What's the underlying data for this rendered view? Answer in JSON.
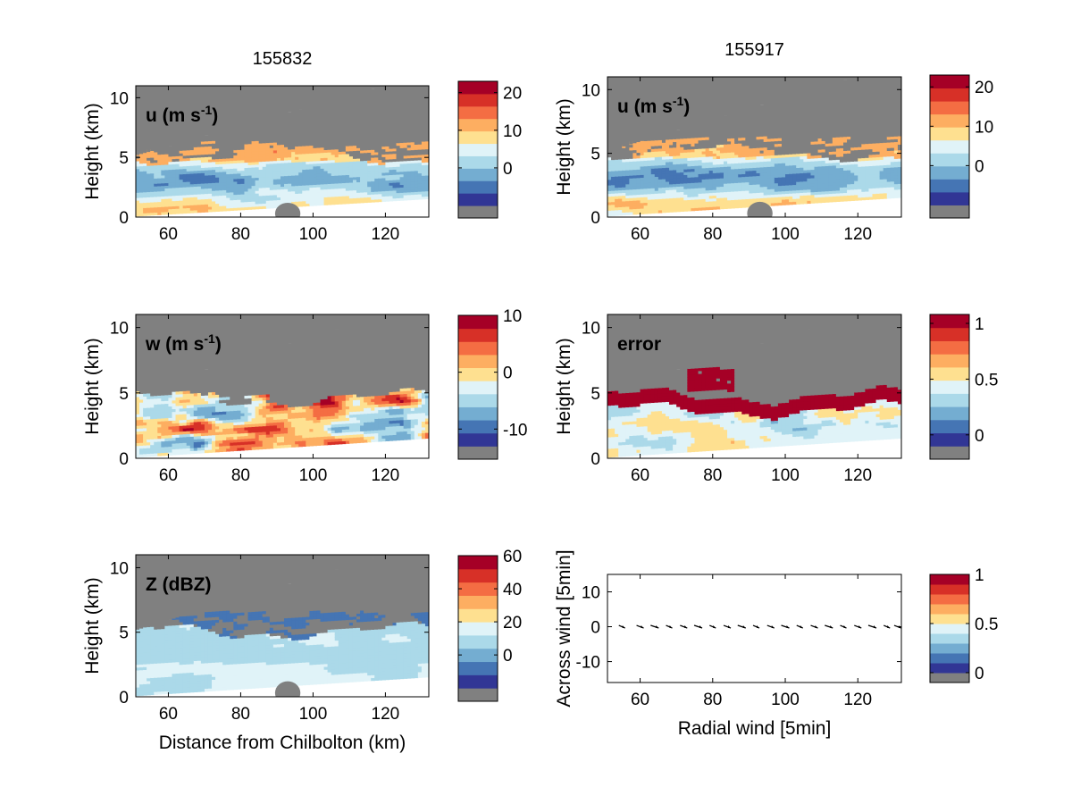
{
  "chart_data": [
    {
      "type": "heatmap",
      "id": "u1",
      "title": "155832",
      "panel_label": "u (m s",
      "panel_label_sup": "-1",
      "panel_label_end": ")",
      "xlabel": "",
      "ylabel": "Height (km)",
      "xlim": [
        51,
        132
      ],
      "ylim": [
        0,
        11
      ],
      "xticks": [
        60,
        80,
        100,
        120
      ],
      "yticks": [
        0,
        5,
        10
      ],
      "colorbar": {
        "min": -10,
        "max": 23,
        "ticks": [
          20,
          10,
          0
        ],
        "ticklabels": [
          "20",
          "10",
          "0"
        ]
      },
      "field": "u"
    },
    {
      "type": "heatmap",
      "id": "u2",
      "title": "155917",
      "panel_label": "u (m s",
      "panel_label_sup": "-1",
      "panel_label_end": ")",
      "xlabel": "",
      "ylabel": "Height (km)",
      "xlim": [
        51,
        132
      ],
      "ylim": [
        0,
        11
      ],
      "xticks": [
        60,
        80,
        100,
        120
      ],
      "yticks": [
        0,
        5,
        10
      ],
      "colorbar": {
        "min": -10,
        "max": 23,
        "ticks": [
          20,
          10,
          0
        ],
        "ticklabels": [
          "20",
          "10",
          "0"
        ]
      },
      "field": "u"
    },
    {
      "type": "heatmap",
      "id": "w",
      "title": "",
      "panel_label": "w (m s",
      "panel_label_sup": "-1",
      "panel_label_end": ")",
      "xlabel": "",
      "ylabel": "Height (km)",
      "xlim": [
        51,
        132
      ],
      "ylim": [
        0,
        11
      ],
      "xticks": [
        60,
        80,
        100,
        120
      ],
      "yticks": [
        0,
        5,
        10
      ],
      "colorbar": {
        "min": -13,
        "max": 10,
        "ticks": [
          10,
          0,
          -10
        ],
        "ticklabels": [
          "10",
          "0",
          "-10"
        ]
      },
      "field": "w"
    },
    {
      "type": "heatmap",
      "id": "err",
      "title": "",
      "panel_label": "error",
      "panel_label_sup": "",
      "panel_label_end": "",
      "xlabel": "",
      "ylabel": "Height (km)",
      "xlim": [
        51,
        132
      ],
      "ylim": [
        0,
        11
      ],
      "xticks": [
        60,
        80,
        100,
        120
      ],
      "yticks": [
        0,
        5,
        10
      ],
      "colorbar": {
        "min": -0.1,
        "max": 1.08,
        "ticks": [
          1,
          0.5,
          0
        ],
        "ticklabels": [
          "1",
          "0.5",
          "0"
        ]
      },
      "field": "error"
    },
    {
      "type": "heatmap",
      "id": "z",
      "title": "",
      "panel_label": "Z (dBZ)",
      "panel_label_sup": "",
      "panel_label_end": "",
      "xlabel": "Distance from Chilbolton (km)",
      "ylabel": "Height (km)",
      "xlim": [
        51,
        132
      ],
      "ylim": [
        0,
        11
      ],
      "xticks": [
        60,
        80,
        100,
        120
      ],
      "yticks": [
        0,
        5,
        10
      ],
      "colorbar": {
        "min": -20,
        "max": 60,
        "ticks": [
          60,
          40,
          20,
          0
        ],
        "ticklabels": [
          "60",
          "40",
          "20",
          "0"
        ]
      },
      "field": "z"
    },
    {
      "type": "scatter",
      "id": "vec",
      "title": "",
      "panel_label": "",
      "panel_label_sup": "",
      "panel_label_end": "",
      "xlabel": "Radial wind [5min]",
      "ylabel": "Across wind [5min]",
      "xlim": [
        51,
        132
      ],
      "ylim": [
        -16,
        15
      ],
      "xticks": [
        60,
        80,
        100,
        120
      ],
      "yticks": [
        10,
        0,
        -10
      ],
      "x": [
        55,
        60,
        64,
        68,
        72,
        76,
        80,
        84,
        88,
        92,
        96,
        100,
        104,
        108,
        112,
        116,
        120,
        124,
        128,
        131
      ],
      "y": [
        0,
        0,
        0,
        0,
        0,
        0,
        0,
        0,
        0,
        0,
        0,
        0,
        0,
        0,
        0,
        0,
        0,
        0,
        0,
        0
      ],
      "colorbar": {
        "min": 0,
        "max": 1,
        "ticks": [
          1,
          0.5,
          0
        ],
        "ticklabels": [
          "1",
          "0.5",
          "0"
        ]
      },
      "field": "vec"
    }
  ],
  "palette": {
    "nan": "#808080",
    "levels": [
      "#313695",
      "#4575b4",
      "#74add1",
      "#abd9e9",
      "#e0f3f8",
      "#fee090",
      "#fdae61",
      "#f46d43",
      "#d73027",
      "#a50026"
    ],
    "mask": "#808080",
    "axes": "#000000"
  }
}
